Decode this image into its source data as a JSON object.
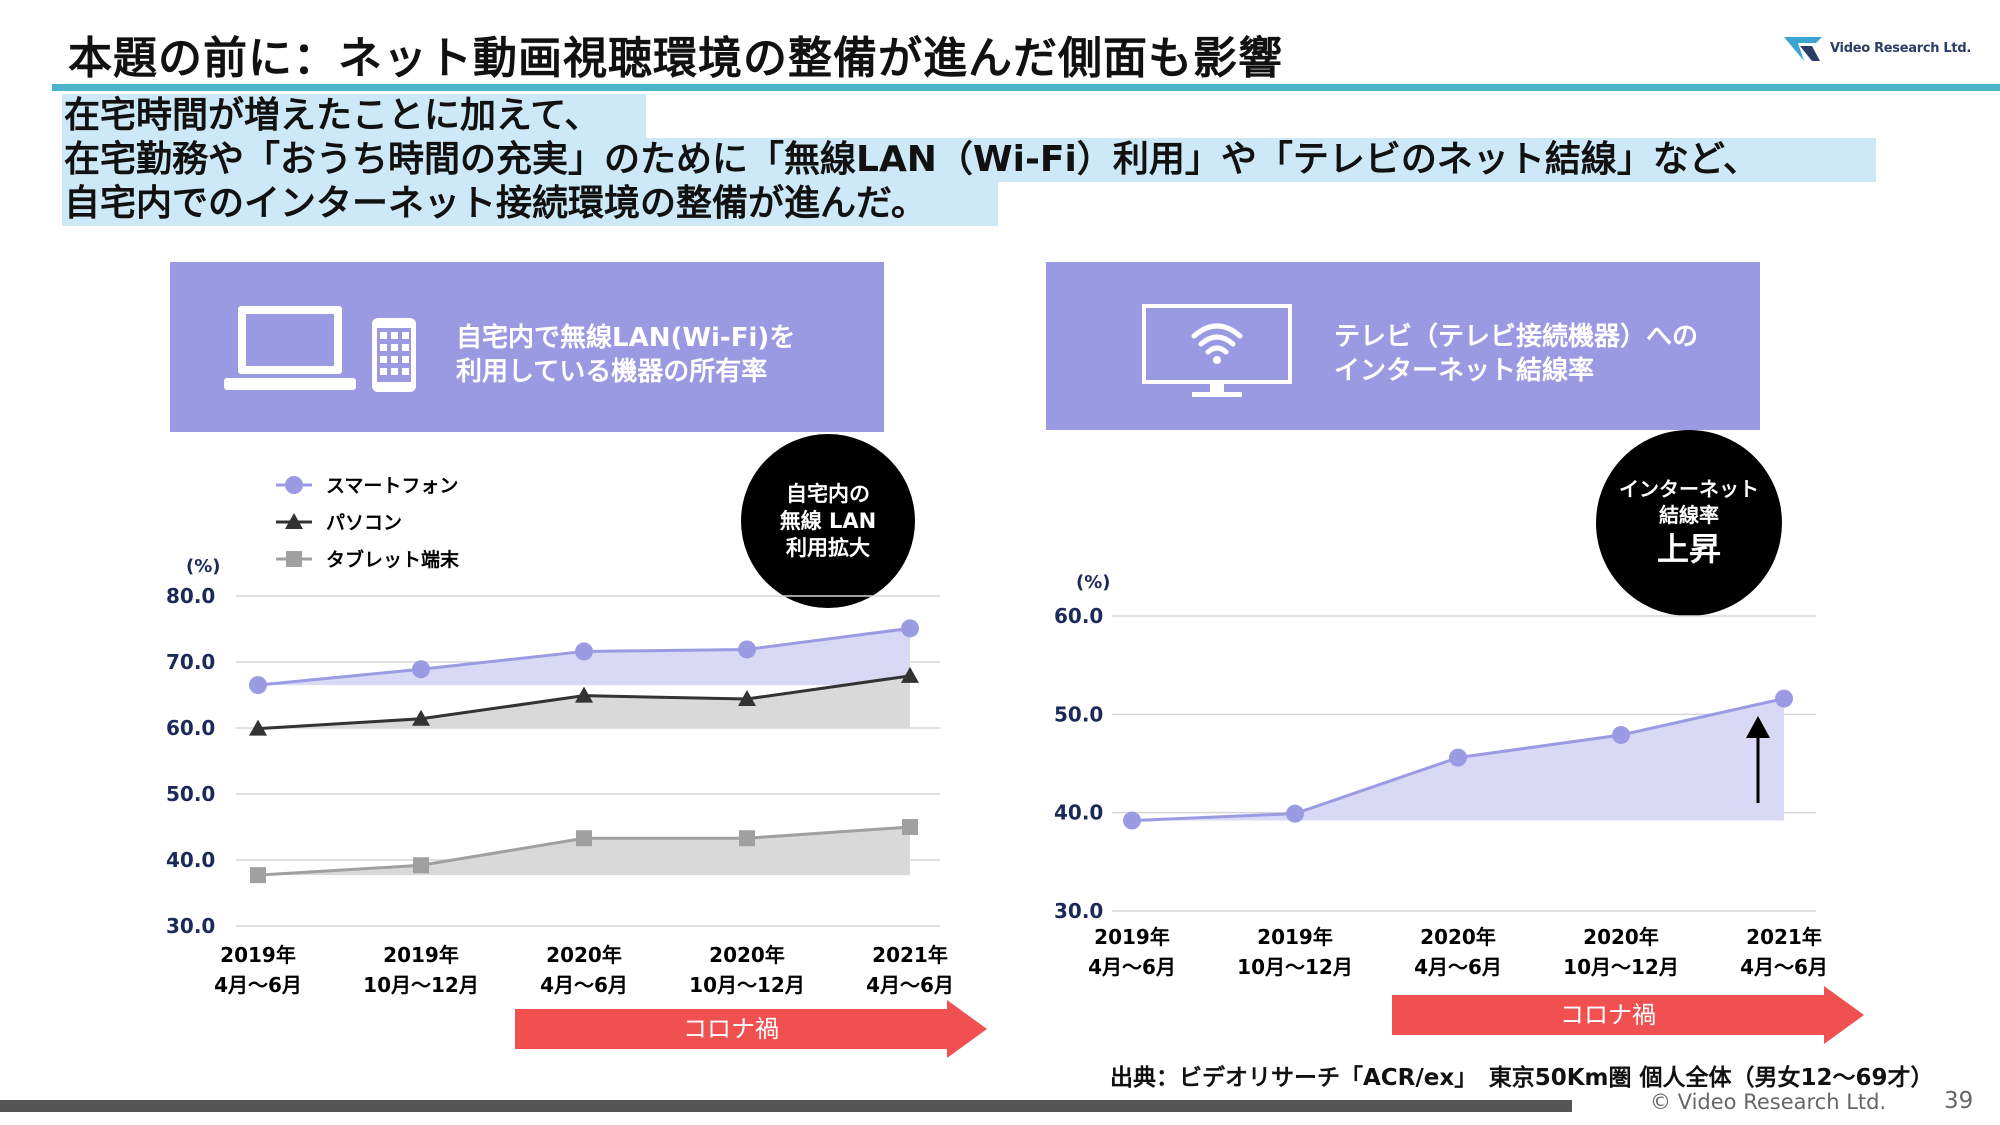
{
  "header": {
    "title": "本題の前に：ネット動画視聴環境の整備が進んだ側面も影響",
    "logo_text": "Video Research Ltd."
  },
  "highlight": {
    "line1": "在宅時間が増えたことに加えて、",
    "line2": "在宅勤務や「おうち時間の充実」のために「無線LAN（Wi-Fi）利用」や「テレビのネット結線」など、",
    "line3": "自宅内でのインターネット接続環境の整備が進んだ。"
  },
  "left_panel": {
    "line1": "自宅内で無線LAN(Wi-Fi)を",
    "line2": "利用している機器の所有率",
    "icons": [
      "laptop-icon",
      "smartphone-icon"
    ],
    "badge": [
      "自宅内の",
      "無線 LAN",
      "利用拡大"
    ]
  },
  "right_panel": {
    "line1": "テレビ（テレビ接続機器）への",
    "line2": "インターネット結線率",
    "icons": [
      "tv-wifi-icon"
    ],
    "badge_small": [
      "インターネット",
      "結線率"
    ],
    "badge_big": "上昇"
  },
  "corona_label": "コロナ禍",
  "source": "出典：ビデオリサーチ「ACR/ex」　東京50Km圏 個人全体（男女12～69才）",
  "footer": {
    "copyright": "© Video Research Ltd.",
    "page": "39"
  },
  "colors": {
    "title_rule": "#4ab5c9",
    "highlight_bg": "#cde9f7",
    "panel_bg": "#9a9ae2",
    "smartphone": "#9b9be3",
    "pc": "#333333",
    "tablet": "#a0a0a0",
    "arrow": "#f05050"
  },
  "chart_data": [
    {
      "type": "line",
      "ylabel": "(%)",
      "ylim": [
        30,
        80
      ],
      "yticks": [
        "80.0",
        "70.0",
        "60.0",
        "50.0",
        "40.0",
        "30.0"
      ],
      "categories": [
        [
          "2019年",
          "4月～6月"
        ],
        [
          "2019年",
          "10月～12月"
        ],
        [
          "2020年",
          "4月～6月"
        ],
        [
          "2020年",
          "10月～12月"
        ],
        [
          "2021年",
          "4月～6月"
        ]
      ],
      "legend_position": "top-left",
      "series": [
        {
          "name": "スマートフォン",
          "marker": "circle",
          "values": [
            66.5,
            68.9,
            71.6,
            71.9,
            75.1
          ]
        },
        {
          "name": "パソコン",
          "marker": "triangle",
          "values": [
            59.9,
            61.4,
            64.9,
            64.4,
            67.9
          ]
        },
        {
          "name": "タブレット端末",
          "marker": "square",
          "values": [
            37.7,
            39.2,
            43.3,
            43.3,
            45.0
          ]
        }
      ]
    },
    {
      "type": "area",
      "ylabel": "(%)",
      "ylim": [
        30,
        60
      ],
      "yticks": [
        "60.0",
        "50.0",
        "40.0",
        "30.0"
      ],
      "categories": [
        [
          "2019年",
          "4月～6月"
        ],
        [
          "2019年",
          "10月～12月"
        ],
        [
          "2020年",
          "4月～6月"
        ],
        [
          "2020年",
          "10月～12月"
        ],
        [
          "2021年",
          "4月～6月"
        ]
      ],
      "series": [
        {
          "values": [
            39.2,
            39.9,
            45.6,
            47.9,
            51.6
          ]
        }
      ]
    }
  ]
}
